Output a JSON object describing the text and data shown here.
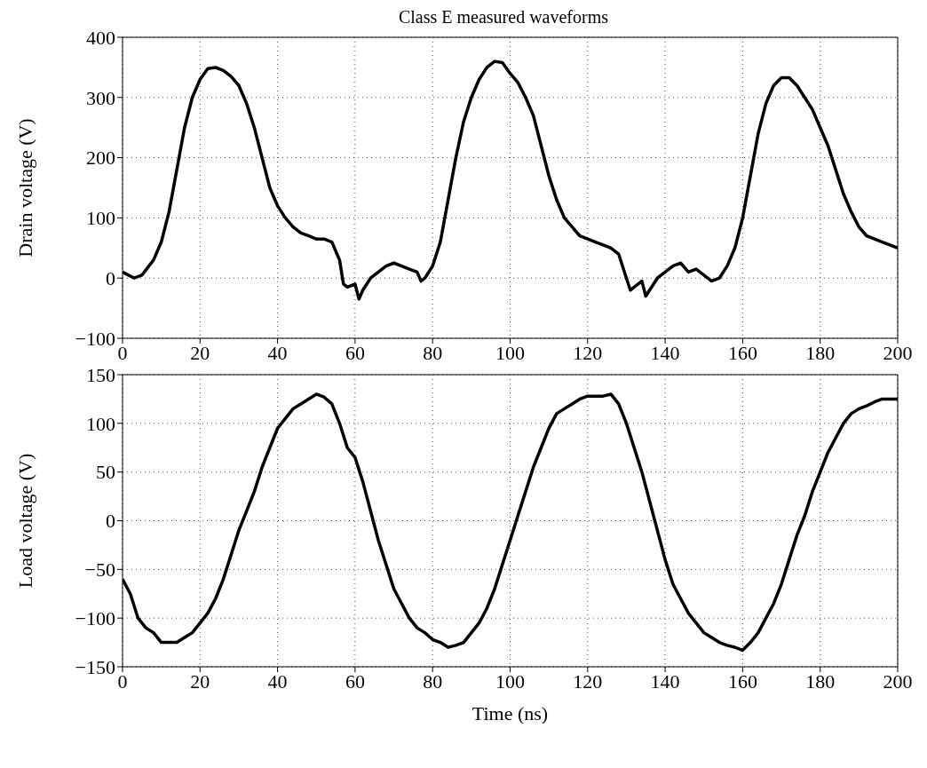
{
  "chart_data": [
    {
      "type": "line",
      "title": "Class E measured waveforms",
      "ylabel": "Drain voltage (V)",
      "xlim": [
        0,
        200
      ],
      "xticks": [
        0,
        20,
        40,
        60,
        80,
        100,
        120,
        140,
        160,
        180,
        200
      ],
      "ylim": [
        -100,
        400
      ],
      "yticks": [
        -100,
        0,
        100,
        200,
        300,
        400
      ],
      "grid": true,
      "line_style": "solid",
      "marker": "none",
      "x": [
        0,
        3,
        5,
        8,
        10,
        12,
        14,
        16,
        18,
        20,
        22,
        24,
        26,
        28,
        30,
        32,
        34,
        36,
        38,
        40,
        42,
        44,
        46,
        48,
        50,
        52,
        54,
        56,
        57,
        58,
        60,
        61,
        62,
        64,
        66,
        68,
        70,
        72,
        74,
        76,
        77,
        78,
        80,
        82,
        84,
        86,
        88,
        90,
        92,
        94,
        96,
        98,
        100,
        102,
        104,
        106,
        108,
        110,
        112,
        114,
        116,
        118,
        120,
        122,
        124,
        126,
        128,
        130,
        131,
        132,
        134,
        135,
        136,
        138,
        140,
        142,
        144,
        146,
        148,
        150,
        152,
        154,
        156,
        158,
        160,
        162,
        164,
        166,
        168,
        170,
        172,
        174,
        176,
        178,
        180,
        182,
        184,
        186,
        188,
        190,
        192,
        194,
        196,
        198,
        200
      ],
      "series": [
        {
          "color": "#000000",
          "values": [
            10,
            0,
            5,
            30,
            60,
            110,
            180,
            250,
            300,
            330,
            348,
            350,
            345,
            335,
            320,
            290,
            250,
            200,
            150,
            120,
            100,
            85,
            75,
            70,
            65,
            65,
            60,
            30,
            -10,
            -15,
            -10,
            -35,
            -20,
            0,
            10,
            20,
            25,
            20,
            15,
            10,
            -5,
            0,
            20,
            60,
            130,
            200,
            260,
            300,
            330,
            350,
            360,
            358,
            340,
            325,
            300,
            270,
            220,
            170,
            130,
            100,
            85,
            70,
            65,
            60,
            55,
            50,
            40,
            0,
            -20,
            -15,
            -5,
            -30,
            -20,
            0,
            10,
            20,
            25,
            10,
            15,
            5,
            -5,
            0,
            20,
            50,
            100,
            170,
            240,
            290,
            320,
            333,
            333,
            320,
            300,
            280,
            250,
            220,
            180,
            140,
            110,
            85,
            70,
            65,
            60,
            55,
            50
          ]
        }
      ]
    },
    {
      "type": "line",
      "xlabel": "Time (ns)",
      "ylabel": "Load voltage (V)",
      "xlim": [
        0,
        200
      ],
      "xticks": [
        0,
        20,
        40,
        60,
        80,
        100,
        120,
        140,
        160,
        180,
        200
      ],
      "ylim": [
        -150,
        150
      ],
      "yticks": [
        -150,
        -100,
        -50,
        0,
        50,
        100,
        150
      ],
      "grid": true,
      "line_style": "solid",
      "marker": "none",
      "x": [
        0,
        2,
        4,
        6,
        8,
        10,
        12,
        14,
        16,
        18,
        20,
        22,
        24,
        26,
        28,
        30,
        32,
        34,
        36,
        38,
        40,
        42,
        44,
        46,
        48,
        50,
        52,
        54,
        56,
        58,
        60,
        62,
        64,
        66,
        68,
        70,
        72,
        74,
        76,
        78,
        80,
        82,
        84,
        86,
        88,
        90,
        92,
        94,
        96,
        98,
        100,
        102,
        104,
        106,
        108,
        110,
        112,
        114,
        116,
        118,
        120,
        122,
        124,
        126,
        128,
        130,
        132,
        134,
        136,
        138,
        140,
        142,
        144,
        146,
        148,
        150,
        152,
        154,
        156,
        158,
        160,
        162,
        164,
        166,
        168,
        170,
        172,
        174,
        176,
        178,
        180,
        182,
        184,
        186,
        188,
        190,
        192,
        194,
        196,
        198,
        200
      ],
      "series": [
        {
          "color": "#000000",
          "values": [
            -60,
            -75,
            -100,
            -110,
            -115,
            -125,
            -125,
            -125,
            -120,
            -115,
            -105,
            -95,
            -80,
            -60,
            -35,
            -10,
            10,
            30,
            55,
            75,
            95,
            105,
            115,
            120,
            125,
            130,
            127,
            120,
            100,
            75,
            65,
            40,
            10,
            -20,
            -45,
            -70,
            -85,
            -100,
            -110,
            -115,
            -122,
            -125,
            -130,
            -128,
            -125,
            -115,
            -105,
            -90,
            -70,
            -45,
            -20,
            5,
            30,
            55,
            75,
            95,
            110,
            115,
            120,
            125,
            128,
            128,
            128,
            130,
            120,
            100,
            75,
            50,
            20,
            -10,
            -40,
            -65,
            -80,
            -95,
            -105,
            -115,
            -120,
            -125,
            -128,
            -130,
            -133,
            -125,
            -115,
            -100,
            -85,
            -65,
            -40,
            -15,
            5,
            30,
            50,
            70,
            85,
            100,
            110,
            115,
            118,
            122,
            125,
            125,
            125
          ]
        }
      ]
    }
  ]
}
